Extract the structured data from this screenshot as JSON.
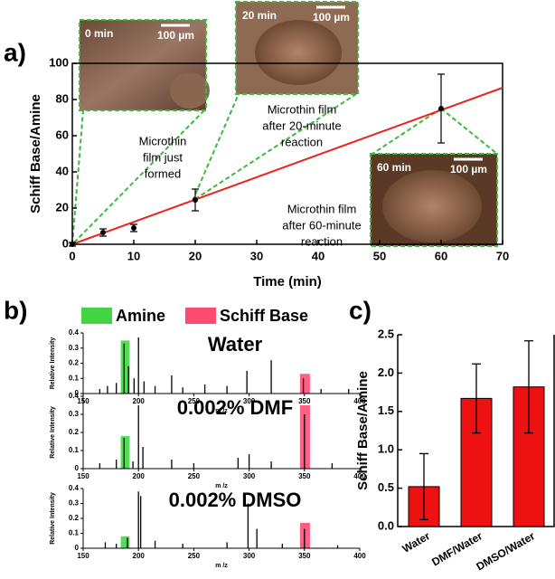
{
  "panel_labels": [
    "a)",
    "b)",
    "c)"
  ],
  "chart_data": [
    {
      "type": "scatter",
      "xlabel": "Time (min)",
      "ylabel": "Schiff Base/Amine",
      "x": [
        0,
        5,
        10,
        20,
        60
      ],
      "values": [
        0,
        6.5,
        9,
        24.5,
        75
      ],
      "errors": [
        1,
        2,
        2,
        6,
        19
      ],
      "color": "#000000",
      "fit": {
        "color": "#e8241f",
        "x": [
          0,
          70
        ],
        "values": [
          0,
          86.5
        ]
      },
      "xlim": [
        0,
        70
      ],
      "xticks": [
        0,
        10,
        20,
        30,
        40,
        50,
        60,
        70
      ],
      "ylim": [
        0,
        100
      ],
      "yticks": [
        0,
        20,
        40,
        60,
        80,
        100
      ],
      "insets": [
        {
          "time": "0 min",
          "scale": "100 µm"
        },
        {
          "time": "20 min",
          "scale": "100 µm"
        },
        {
          "time": "60 min",
          "scale": "100 µm"
        }
      ],
      "annotations": [
        {
          "lines": [
            "Microthin",
            "film just",
            "formed"
          ]
        },
        {
          "lines": [
            "Microthin film",
            "after 20-minute",
            "reaction"
          ]
        },
        {
          "lines": [
            "Microthin film",
            "after 60-minute",
            "reaction"
          ]
        }
      ]
    },
    {
      "type": "spectrum",
      "title": "Water",
      "xlabel": "m /z",
      "ylabel": "Relative Intensity",
      "bands": [
        {
          "name": "Amine",
          "color": "#22cc22",
          "range": [
            184,
            192
          ]
        },
        {
          "name": "Schiff Base",
          "color": "#ff2a5a",
          "range": [
            346,
            355
          ]
        }
      ],
      "band_values": [
        0.35,
        0.13
      ],
      "x": [
        165,
        172,
        180,
        187,
        191,
        196,
        200,
        205,
        215,
        230,
        240,
        260,
        280,
        298,
        320,
        349,
        365,
        390
      ],
      "values": [
        0.03,
        0.05,
        0.07,
        0.33,
        0.18,
        0.1,
        0.37,
        0.08,
        0.05,
        0.12,
        0.04,
        0.06,
        0.05,
        0.15,
        0.22,
        0.1,
        0.03,
        0.03
      ],
      "xlim": [
        150,
        400
      ],
      "xticks": [
        150,
        200,
        250,
        300,
        350,
        400
      ],
      "ylim": [
        0,
        0.4
      ],
      "yticks": [
        0,
        0.1,
        0.2,
        0.3,
        0.4
      ]
    },
    {
      "type": "spectrum",
      "title": "0.002% DMF",
      "xlabel": "m /z",
      "ylabel": "Relative Intensity",
      "band_values": [
        0.18,
        0.35
      ],
      "x": [
        165,
        180,
        187,
        195,
        200,
        204,
        230,
        250,
        290,
        300,
        320,
        350,
        375
      ],
      "values": [
        0.03,
        0.05,
        0.17,
        0.04,
        0.35,
        0.12,
        0.05,
        0.03,
        0.06,
        0.08,
        0.04,
        0.3,
        0.03
      ],
      "xlim": [
        150,
        400
      ],
      "xticks": [
        150,
        200,
        250,
        300,
        350,
        400
      ],
      "ylim": [
        0,
        0.4
      ],
      "yticks": [
        0,
        0.1,
        0.2,
        0.3,
        0.4
      ]
    },
    {
      "type": "spectrum",
      "title": "0.002% DMSO",
      "xlabel": "m /z",
      "ylabel": "Relative Intensity",
      "band_values": [
        0.08,
        0.17
      ],
      "x": [
        170,
        180,
        190,
        200,
        202,
        215,
        240,
        280,
        299,
        307,
        330,
        350,
        380
      ],
      "values": [
        0.04,
        0.03,
        0.07,
        0.38,
        0.35,
        0.05,
        0.03,
        0.04,
        0.3,
        0.13,
        0.03,
        0.13,
        0.02
      ],
      "xlim": [
        150,
        400
      ],
      "xticks": [
        150,
        200,
        250,
        300,
        350,
        400
      ],
      "ylim": [
        0,
        0.4
      ],
      "yticks": [
        0,
        0.1,
        0.2,
        0.3,
        0.4
      ]
    },
    {
      "type": "bar",
      "ylabel": "Schiff Base/Amine",
      "color": "#ee1111",
      "categories": [
        "Water",
        "DMF/Water",
        "DMSO/Water"
      ],
      "values": [
        0.52,
        1.67,
        1.82
      ],
      "errors": [
        0.43,
        0.45,
        0.6
      ],
      "ylim": [
        0,
        2.5
      ],
      "yticks": [
        {
          "value": 0,
          "label": "0.0"
        },
        0.5,
        {
          "value": 1,
          "label": "1.0"
        },
        1.5,
        {
          "value": 2,
          "label": "2.0"
        },
        2.5
      ]
    }
  ]
}
